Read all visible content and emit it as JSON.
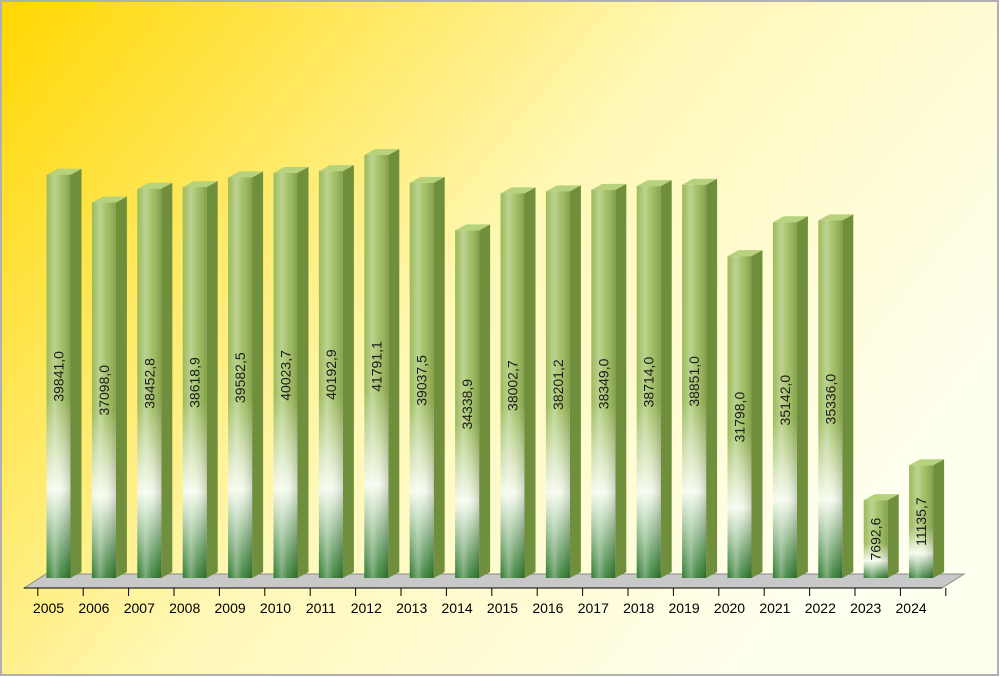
{
  "chart_data": {
    "type": "bar",
    "title": "",
    "xlabel": "",
    "ylabel": "",
    "categories": [
      "2005",
      "2006",
      "2007",
      "2008",
      "2009",
      "2010",
      "2011",
      "2012",
      "2013",
      "2014",
      "2015",
      "2016",
      "2017",
      "2018",
      "2019",
      "2020",
      "2021",
      "2022",
      "2023",
      "2024"
    ],
    "values": [
      39841.0,
      37098.0,
      38452.8,
      38618.9,
      39582.5,
      40023.7,
      40192.9,
      41791.1,
      39037.5,
      34338.9,
      38002.7,
      38201.2,
      38349.0,
      38714.0,
      38851.0,
      31798.0,
      35142.0,
      35336.0,
      7692.6,
      11135.7
    ],
    "value_labels": [
      "39841,0",
      "37098,0",
      "38452,8",
      "38618,9",
      "39582,5",
      "40023,7",
      "40192,9",
      "41791,1",
      "39037,5",
      "34338,9",
      "38002,7",
      "38201,2",
      "38349,0",
      "38714,0",
      "38851,0",
      "31798,0",
      "35142,0",
      "35336,0",
      "7692,6",
      "11135,7"
    ],
    "ylim": [
      0,
      41791.1
    ],
    "grid": false,
    "legend": "none",
    "style": "3d-cylinder",
    "colors": {
      "bar_front": "#9bbb59",
      "bar_side": "#6f8f3c",
      "bar_top": "#b7d27c",
      "bar_highlight": "#f4faec",
      "bar_base": "#2f7a2f",
      "floor": "#c8c8c8",
      "background_start": "#ffd700",
      "background_end": "#fffff0",
      "frame": "#b0b0b0"
    }
  }
}
